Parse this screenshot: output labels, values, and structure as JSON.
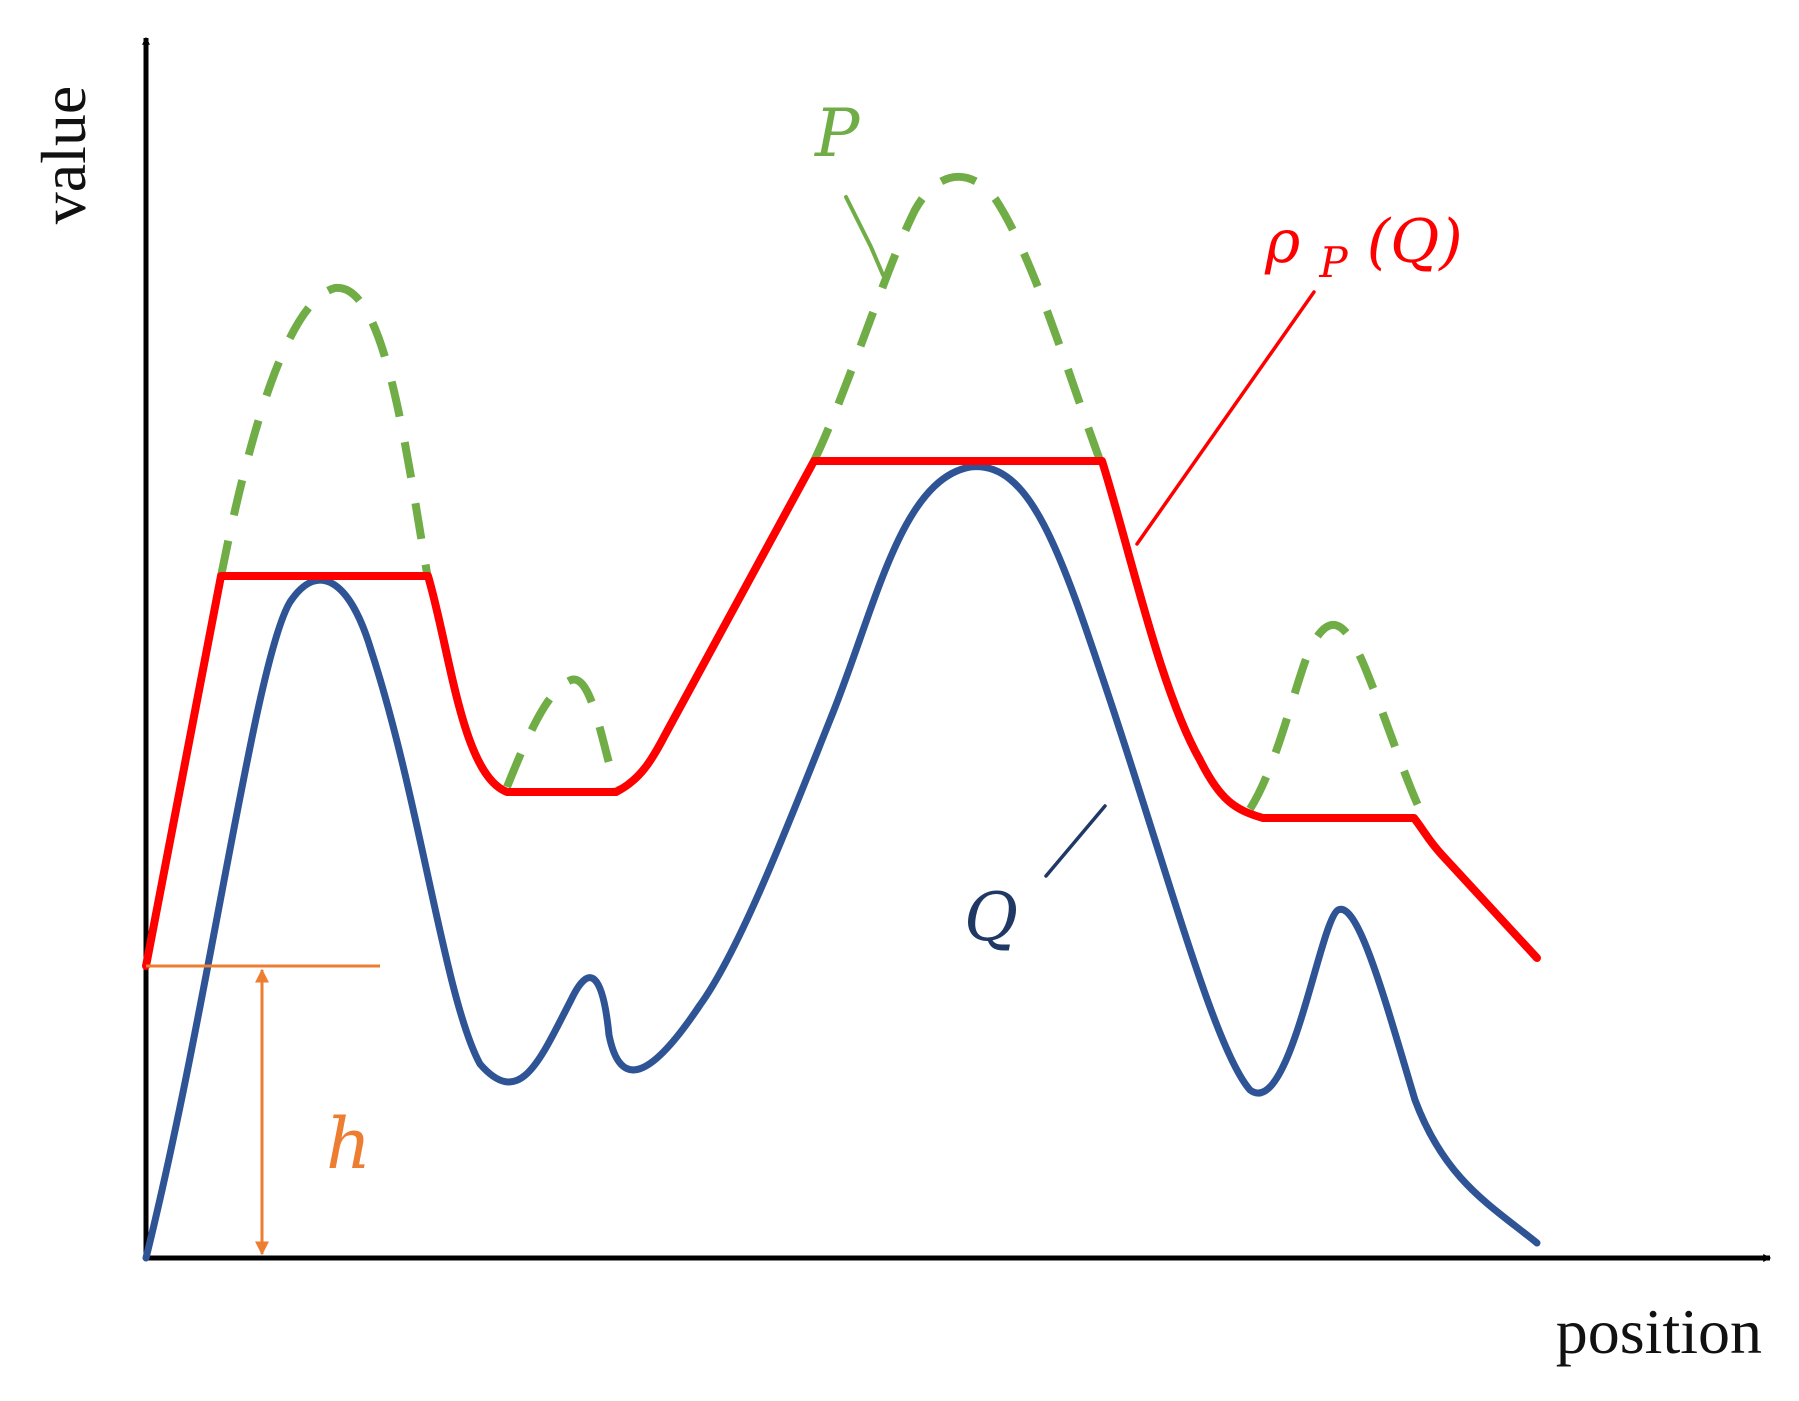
{
  "axes": {
    "y_label": "value",
    "x_label": "position"
  },
  "labels": {
    "p": "P",
    "rho_base": "ρ",
    "rho_sub": "P",
    "rho_arg": "(Q)",
    "q": "Q",
    "h": "h"
  },
  "colors": {
    "axis": "#000000",
    "q_curve": "#2f5496",
    "p_curve": "#70ad47",
    "rho_curve": "#ff0000",
    "h_marker": "#ed7d31"
  },
  "icons": {
    "y_axis_arrowhead": "triangle-up",
    "x_axis_arrowhead": "triangle-right",
    "h_arrowheads": "double-headed-arrow"
  }
}
